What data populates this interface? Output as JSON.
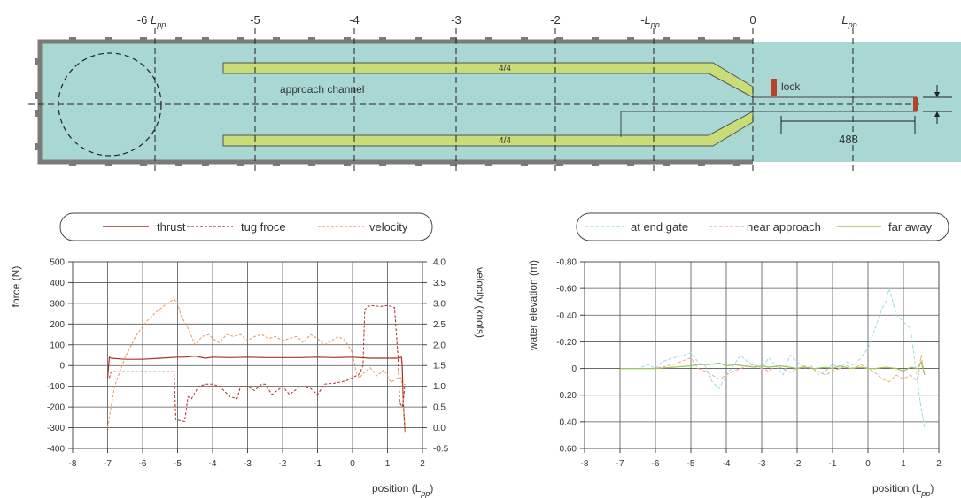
{
  "colors": {
    "water": "#a9d7d3",
    "wall": "#7a7a7a",
    "guide_wall": "#c8dc78",
    "lock_gate": "#b5432e",
    "thrust": "#a83228",
    "tug": "#a83228",
    "velocity": "#e8955a",
    "end_gate": "#9fd8ec",
    "near_approach": "#eeaa88",
    "far_away": "#9cc45a"
  },
  "schematic": {
    "ticks": [
      "-6",
      "-5",
      "-4",
      "-3",
      "-2",
      "-",
      "0",
      ""
    ],
    "lpp_symbol": "L",
    "lpp_sub": "pp",
    "ratio_upper": "4/4",
    "ratio_lower": "4/4",
    "approach_label": "approach channel",
    "lock_label": "lock",
    "dimension": "488"
  },
  "chart_data": [
    {
      "type": "line",
      "xlabel": "position (L",
      "xlabel_sub": "pp",
      "xlabel_end": ")",
      "ylabel": "force (N)",
      "ylabel_right": "velocity (knots)",
      "x_ticks": [
        -8,
        -7,
        -6,
        -5,
        -4,
        -3,
        -2,
        -1,
        0,
        1,
        2
      ],
      "y_ticks": [
        500,
        400,
        300,
        200,
        100,
        0,
        -100,
        -200,
        -300,
        -400
      ],
      "y2_ticks": [
        "4.0",
        "3.5",
        "3.0",
        "2.5",
        "2.0",
        "1.5",
        "1.0",
        "0.5",
        "0.0",
        "-0.5"
      ],
      "xlim": [
        -8,
        2
      ],
      "ylim": [
        -400,
        500
      ],
      "y2lim": [
        -0.5,
        4.0
      ],
      "grid": true,
      "legend": "top",
      "series": [
        {
          "name": "thrust",
          "axis": "left",
          "style": "solid",
          "x": [
            -7.0,
            -6.95,
            -6.9,
            -6.5,
            -6.0,
            -5.5,
            -5.0,
            -4.8,
            -4.5,
            -4.2,
            -4.0,
            -3.5,
            -3.0,
            -2.5,
            -2.0,
            -1.5,
            -1.0,
            -0.5,
            0.0,
            0.5,
            1.0,
            1.3,
            1.4,
            1.42,
            1.45,
            1.5
          ],
          "y": [
            -60,
            40,
            35,
            30,
            30,
            35,
            40,
            40,
            45,
            35,
            40,
            38,
            40,
            38,
            38,
            38,
            40,
            38,
            40,
            35,
            35,
            35,
            40,
            0,
            -180,
            -320
          ]
        },
        {
          "name": "tug froce",
          "axis": "left",
          "style": "dashed",
          "x": [
            -6.95,
            -6.9,
            -5.5,
            -5.1,
            -5.05,
            -4.8,
            -4.7,
            -4.6,
            -4.4,
            -4.2,
            -4.0,
            -3.8,
            -3.5,
            -3.3,
            -3.2,
            -3.0,
            -2.8,
            -2.6,
            -2.5,
            -2.3,
            -2.0,
            -1.8,
            -1.5,
            -1.2,
            -1.0,
            -0.8,
            -0.5,
            -0.2,
            0.0,
            0.2,
            0.3,
            0.35,
            0.5,
            0.8,
            1.0,
            1.2,
            1.3,
            1.35,
            1.42,
            1.45,
            1.5
          ],
          "y": [
            -60,
            -30,
            -30,
            -30,
            -260,
            -270,
            -150,
            -160,
            -100,
            -90,
            -90,
            -100,
            -150,
            -160,
            -100,
            -100,
            -120,
            -90,
            -90,
            -140,
            -100,
            -140,
            -100,
            -110,
            -140,
            -90,
            -85,
            -75,
            -60,
            -40,
            0,
            270,
            290,
            285,
            290,
            280,
            40,
            -180,
            -200,
            -170,
            -90
          ]
        },
        {
          "name": "velocity",
          "axis": "right",
          "style": "dashed",
          "x": [
            -7.0,
            -6.8,
            -6.5,
            -6.2,
            -5.9,
            -5.6,
            -5.3,
            -5.1,
            -5.0,
            -4.9,
            -4.7,
            -4.5,
            -4.3,
            -4.1,
            -4.0,
            -3.8,
            -3.6,
            -3.4,
            -3.2,
            -3.0,
            -2.8,
            -2.6,
            -2.4,
            -2.2,
            -2.0,
            -1.8,
            -1.6,
            -1.4,
            -1.2,
            -1.0,
            -0.8,
            -0.6,
            -0.4,
            -0.2,
            0.0,
            0.1,
            0.2,
            0.3,
            0.5,
            0.7,
            0.9,
            1.1,
            1.3,
            1.4,
            1.45,
            1.5
          ],
          "y": [
            0.0,
            1.0,
            1.7,
            2.2,
            2.55,
            2.8,
            3.0,
            3.1,
            3.0,
            2.7,
            2.4,
            2.0,
            2.2,
            2.25,
            2.15,
            2.05,
            2.25,
            2.2,
            2.25,
            2.1,
            2.2,
            2.25,
            2.15,
            2.2,
            2.1,
            2.15,
            2.2,
            2.05,
            2.25,
            2.15,
            2.0,
            2.1,
            2.2,
            2.1,
            1.8,
            1.35,
            1.2,
            1.3,
            1.45,
            1.25,
            1.4,
            1.1,
            1.2,
            1.2,
            0.6,
            -0.1
          ]
        }
      ]
    },
    {
      "type": "line",
      "xlabel": "position (L",
      "xlabel_sub": "pp",
      "xlabel_end": ")",
      "ylabel": "water elevation (m)",
      "x_ticks": [
        -8,
        -7,
        -6,
        -5,
        -4,
        -3,
        -2,
        -1,
        0,
        1,
        2
      ],
      "y_ticks": [
        "-0.80",
        "-0.60",
        "-0.40",
        "-0.20",
        "0",
        "0.20",
        "0.40",
        "0.60"
      ],
      "xlim": [
        -8,
        2
      ],
      "ylim": [
        -0.8,
        0.6
      ],
      "y_inverted": true,
      "grid": true,
      "legend": "top",
      "series": [
        {
          "name": "at end gate",
          "style": "dashed",
          "x": [
            -7.0,
            -6.5,
            -6.2,
            -6.0,
            -5.8,
            -5.5,
            -5.2,
            -5.0,
            -4.8,
            -4.6,
            -4.4,
            -4.2,
            -4.0,
            -3.8,
            -3.6,
            -3.4,
            -3.2,
            -3.0,
            -2.8,
            -2.6,
            -2.4,
            -2.2,
            -2.0,
            -1.8,
            -1.6,
            -1.4,
            -1.2,
            -1.0,
            -0.8,
            -0.6,
            -0.4,
            -0.2,
            0.0,
            0.2,
            0.4,
            0.5,
            0.6,
            0.7,
            0.8,
            1.0,
            1.2,
            1.3,
            1.4,
            1.5,
            1.6
          ],
          "y": [
            0.0,
            0.0,
            -0.03,
            0.0,
            -0.05,
            -0.08,
            -0.1,
            -0.12,
            -0.05,
            -0.02,
            0.1,
            0.15,
            0.05,
            -0.02,
            -0.1,
            -0.05,
            -0.02,
            0.0,
            -0.08,
            -0.02,
            0.05,
            -0.1,
            -0.05,
            0.0,
            -0.02,
            0.05,
            0.02,
            -0.03,
            0.0,
            -0.05,
            -0.02,
            -0.08,
            -0.15,
            -0.3,
            -0.45,
            -0.5,
            -0.6,
            -0.5,
            -0.4,
            -0.35,
            -0.3,
            -0.1,
            0.1,
            0.3,
            0.45
          ]
        },
        {
          "name": "near approach",
          "style": "dashed",
          "x": [
            -7.0,
            -6.5,
            -6.0,
            -5.5,
            -5.3,
            -5.0,
            -4.8,
            -4.6,
            -4.4,
            -4.2,
            -4.0,
            -3.8,
            -3.6,
            -3.4,
            -3.2,
            -3.0,
            -2.8,
            -2.6,
            -2.4,
            -2.2,
            -2.0,
            -1.8,
            -1.6,
            -1.4,
            -1.2,
            -1.0,
            -0.8,
            -0.6,
            -0.4,
            -0.2,
            0.0,
            0.2,
            0.4,
            0.6,
            0.8,
            1.0,
            1.2,
            1.4,
            1.5,
            1.6
          ],
          "y": [
            0.0,
            0.0,
            0.0,
            -0.03,
            -0.05,
            -0.08,
            0.0,
            0.02,
            0.05,
            0.08,
            0.05,
            0.02,
            0.0,
            -0.02,
            -0.03,
            0.0,
            0.02,
            -0.02,
            0.0,
            0.03,
            0.0,
            -0.02,
            0.0,
            0.02,
            0.05,
            0.02,
            0.0,
            -0.02,
            0.0,
            -0.03,
            0.0,
            0.03,
            0.08,
            0.1,
            0.05,
            0.08,
            0.05,
            0.1,
            -0.1,
            0.05
          ]
        },
        {
          "name": "far away",
          "style": "solid",
          "x": [
            -7.0,
            -6.5,
            -6.0,
            -5.5,
            -5.0,
            -4.8,
            -4.5,
            -4.2,
            -4.0,
            -3.8,
            -3.5,
            -3.2,
            -3.0,
            -2.8,
            -2.5,
            -2.2,
            -2.0,
            -1.8,
            -1.5,
            -1.2,
            -1.0,
            -0.8,
            -0.5,
            -0.2,
            0.0,
            0.2,
            0.5,
            0.8,
            1.0,
            1.2,
            1.4,
            1.5,
            1.6
          ],
          "y": [
            0.0,
            0.0,
            0.0,
            -0.01,
            -0.02,
            -0.03,
            -0.03,
            -0.04,
            -0.02,
            -0.03,
            -0.02,
            -0.01,
            -0.02,
            -0.01,
            -0.02,
            -0.01,
            0.0,
            -0.01,
            0.0,
            -0.01,
            0.0,
            -0.02,
            0.0,
            -0.01,
            0.0,
            0.0,
            -0.01,
            0.0,
            0.02,
            -0.01,
            0.0,
            -0.05,
            0.05
          ]
        }
      ]
    }
  ]
}
